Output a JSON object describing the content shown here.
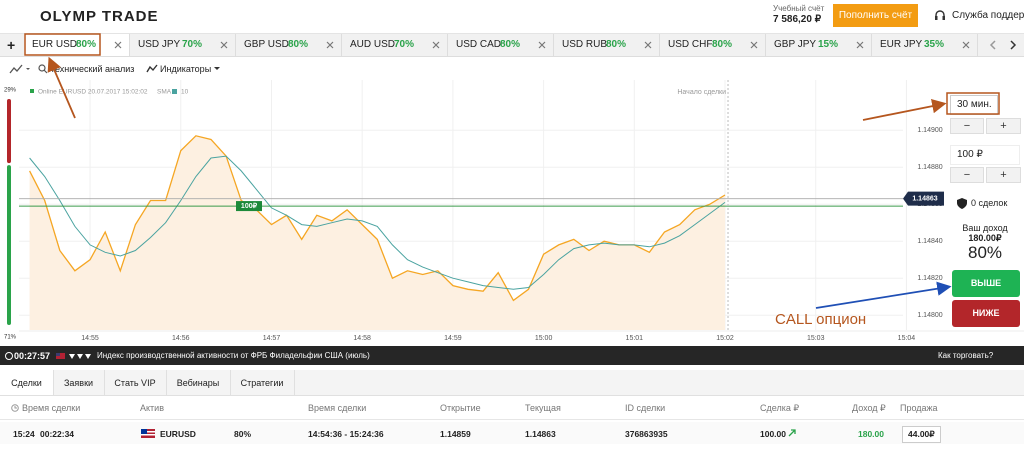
{
  "header": {
    "logo": "OLYMP TRADE",
    "account_label": "Учебный счёт",
    "balance": "7 586,20 ₽",
    "deposit_button": "Пополнить счёт",
    "support": "Служба поддержки"
  },
  "asset_tabs": [
    {
      "asset": "EUR USD",
      "payout": "80%"
    },
    {
      "asset": "USD JPY",
      "payout": "70%"
    },
    {
      "asset": "GBP USD",
      "payout": "80%"
    },
    {
      "asset": "AUD USD",
      "payout": "70%"
    },
    {
      "asset": "USD CAD",
      "payout": "80%"
    },
    {
      "asset": "USD RUB",
      "payout": "80%"
    },
    {
      "asset": "USD CHF",
      "payout": "80%"
    },
    {
      "asset": "GBP JPY",
      "payout": "15%"
    },
    {
      "asset": "EUR JPY",
      "payout": "35%"
    }
  ],
  "toolbar": {
    "analysis": "Технический анализ",
    "indicators": "Индикаторы"
  },
  "chart_data": {
    "type": "line",
    "legend": "Online EURUSD 20.07.2017 15:02:02",
    "indicator": "SMA",
    "indicator_period": 10,
    "x": [
      "14:54:20",
      "14:54:30",
      "14:54:40",
      "14:54:50",
      "14:55:00",
      "14:55:10",
      "14:55:20",
      "14:55:30",
      "14:55:40",
      "14:55:50",
      "14:56:00",
      "14:56:10",
      "14:56:20",
      "14:56:30",
      "14:56:40",
      "14:56:50",
      "14:57:00",
      "14:57:10",
      "14:57:20",
      "14:57:30",
      "14:57:40",
      "14:57:50",
      "14:58:00",
      "14:58:10",
      "14:58:20",
      "14:58:30",
      "14:58:40",
      "14:58:50",
      "14:59:00",
      "14:59:10",
      "14:59:20",
      "14:59:30",
      "14:59:40",
      "14:59:50",
      "15:00:00",
      "15:00:10",
      "15:00:20",
      "15:00:30",
      "15:00:40",
      "15:00:50",
      "15:01:00",
      "15:01:10",
      "15:01:20",
      "15:01:30",
      "15:01:40",
      "15:01:50",
      "15:02:00"
    ],
    "series": [
      {
        "name": "EURUSD",
        "color": "#f5a623",
        "values": [
          1.14878,
          1.14862,
          1.14835,
          1.14824,
          1.1483,
          1.14845,
          1.14824,
          1.14849,
          1.14862,
          1.14862,
          1.14889,
          1.14897,
          1.14895,
          1.14886,
          1.14862,
          1.14857,
          1.14849,
          1.14854,
          1.14841,
          1.14854,
          1.14851,
          1.14857,
          1.14849,
          1.14841,
          1.1482,
          1.14824,
          1.14822,
          1.14824,
          1.14816,
          1.14814,
          1.14813,
          1.14823,
          1.14808,
          1.14814,
          1.14833,
          1.14838,
          1.14841,
          1.14835,
          1.1484,
          1.14838,
          1.14838,
          1.14834,
          1.14845,
          1.14849,
          1.14857,
          1.1486,
          1.14865
        ]
      },
      {
        "name": "SMA",
        "color": "#4aa3a0",
        "values": [
          1.14885,
          1.14875,
          1.14862,
          1.14848,
          1.14838,
          1.14834,
          1.14832,
          1.14835,
          1.14842,
          1.1485,
          1.14862,
          1.14875,
          1.14885,
          1.14886,
          1.14878,
          1.14868,
          1.14858,
          1.14854,
          1.14849,
          1.14848,
          1.1485,
          1.14852,
          1.14851,
          1.14848,
          1.14838,
          1.1483,
          1.14826,
          1.14823,
          1.1482,
          1.14818,
          1.14816,
          1.14815,
          1.14814,
          1.14815,
          1.14822,
          1.1483,
          1.14836,
          1.14838,
          1.14839,
          1.14838,
          1.14838,
          1.14837,
          1.14839,
          1.14843,
          1.14849,
          1.14855,
          1.14861
        ]
      }
    ],
    "xlim": [
      "14:54:13",
      "15:04:05"
    ],
    "xticks": [
      "14:55",
      "14:56",
      "14:57",
      "14:58",
      "14:59",
      "15:00",
      "15:01",
      "15:02",
      "15:03",
      "15:04"
    ],
    "ylim": [
      1.14792,
      1.14925
    ],
    "yticks": [
      {
        "value": 1.149,
        "label": "1.14900"
      },
      {
        "value": 1.1488,
        "label": "1.14880"
      },
      {
        "value": 1.1486,
        "label": "1.14860"
      },
      {
        "value": 1.1484,
        "label": "1.14840"
      },
      {
        "value": 1.1482,
        "label": "1.14820"
      },
      {
        "value": 1.148,
        "label": "1.14800"
      }
    ],
    "grid": true,
    "current_price": 1.14863,
    "open_price": 1.14859,
    "deal_marker": "100₽",
    "start_label": "Начало сделки",
    "sentiment": {
      "values": [
        29,
        71
      ],
      "value_labels": [
        "29%",
        "71%"
      ],
      "colors": [
        "#b3262a",
        "#2aa34a"
      ]
    }
  },
  "right_panel": {
    "duration": "30 мин.",
    "minus": "−",
    "plus": "+",
    "amount": "100 ₽",
    "deals": "0 сделок",
    "income_label": "Ваш доход",
    "income": "180.00₽",
    "payout": "80%",
    "up_button": "ВЫШЕ",
    "down_button": "НИЖЕ"
  },
  "annotation": "CALL опцион",
  "news": {
    "timer": "00:27:57",
    "text": "Индекс производственной активности от ФРБ Филадельфии США (июль)",
    "help": "Как торговать?"
  },
  "bottom_tabs": [
    "Сделки",
    "Заявки",
    "Стать VIP",
    "Вебинары",
    "Стратегии"
  ],
  "trades": {
    "headers": [
      "Время сделки",
      "Актив",
      "Время сделки",
      "Открытие",
      "Текущая",
      "ID сделки",
      "Сделка ₽",
      "Доход ₽",
      "Продажа"
    ],
    "rows": [
      [
        "15:24",
        "00:22:34",
        "EURUSD",
        "80%",
        "14:54:36 - 15:24:36",
        "1.14859",
        "1.14863",
        "376863935",
        "100.00",
        "180.00",
        "44.00₽"
      ]
    ]
  }
}
